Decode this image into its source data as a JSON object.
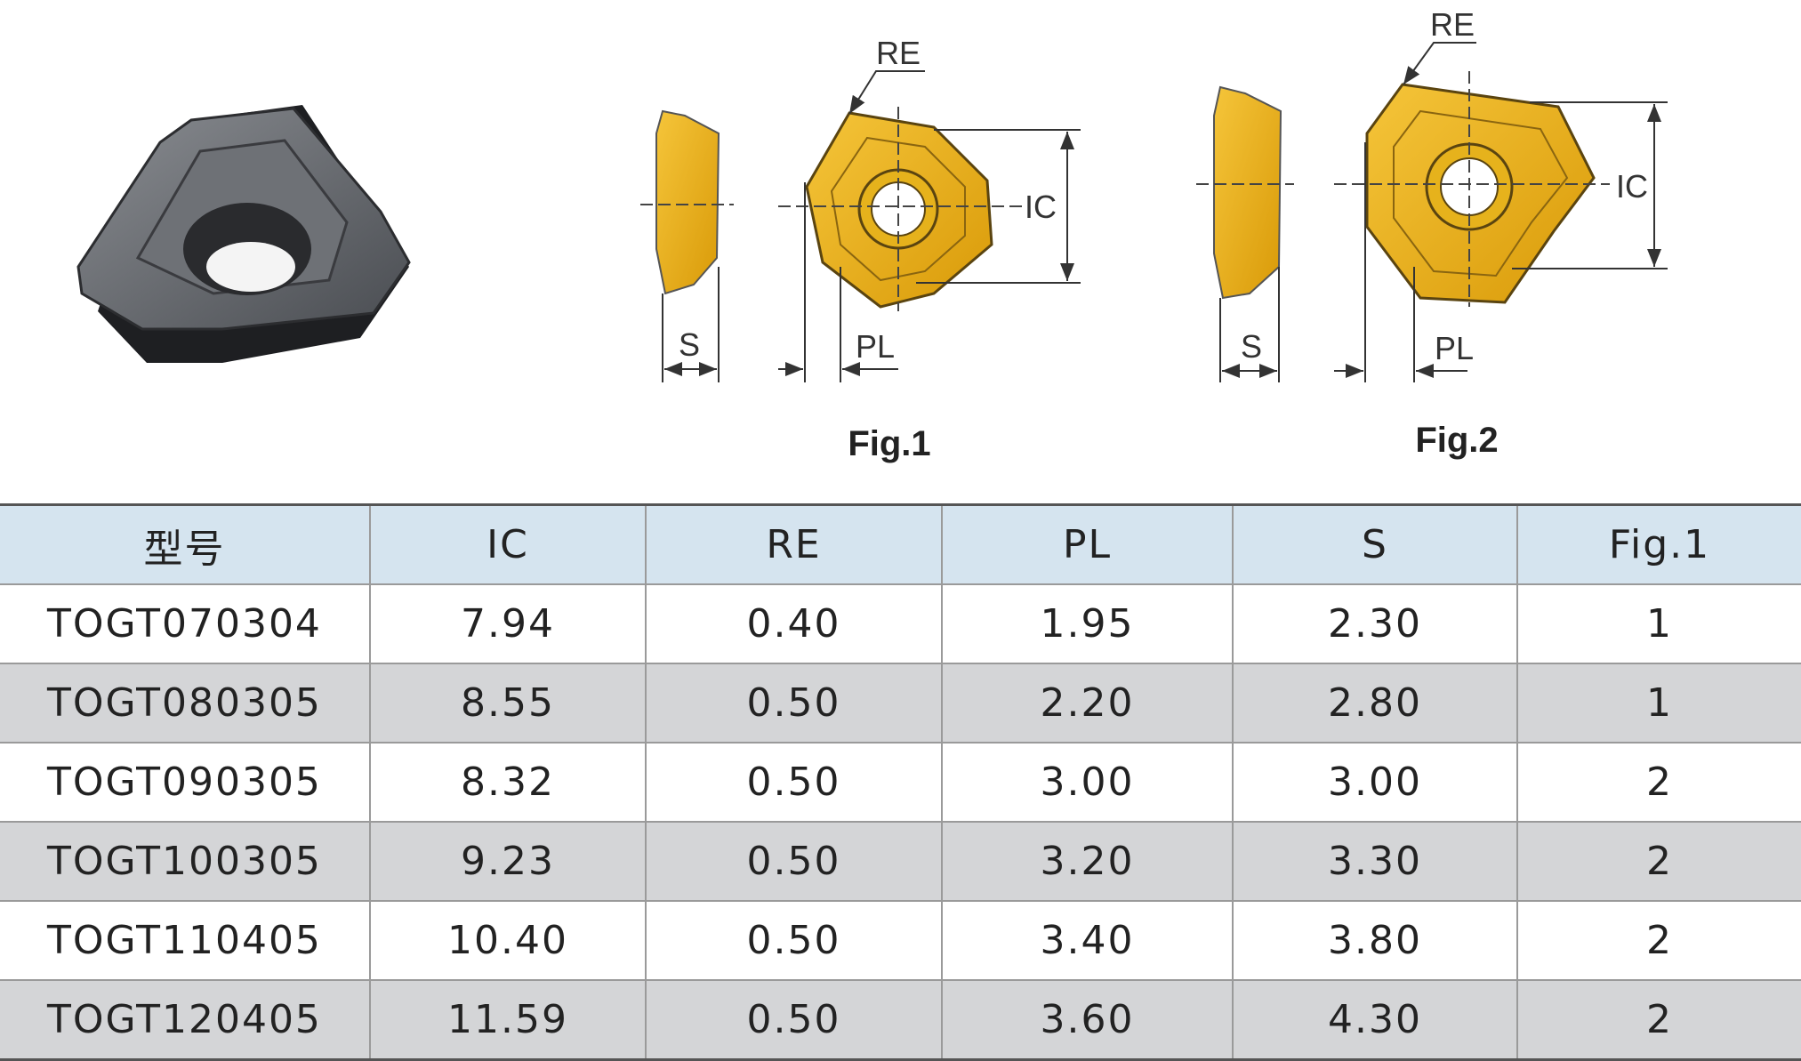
{
  "figures": [
    {
      "caption": "Fig.1",
      "labels": {
        "re": "RE",
        "ic": "IC",
        "pl": "PL",
        "s": "S"
      }
    },
    {
      "caption": "Fig.2",
      "labels": {
        "re": "RE",
        "ic": "IC",
        "pl": "PL",
        "s": "S"
      }
    }
  ],
  "table": {
    "header": [
      "型号",
      "IC",
      "RE",
      "PL",
      "S",
      "Fig.1"
    ],
    "rows": [
      [
        "TOGT070304",
        "7.94",
        "0.40",
        "1.95",
        "2.30",
        "1"
      ],
      [
        "TOGT080305",
        "8.55",
        "0.50",
        "2.20",
        "2.80",
        "1"
      ],
      [
        "TOGT090305",
        "8.32",
        "0.50",
        "3.00",
        "3.00",
        "2"
      ],
      [
        "TOGT100305",
        "9.23",
        "0.50",
        "3.20",
        "3.30",
        "2"
      ],
      [
        "TOGT110405",
        "10.40",
        "0.50",
        "3.40",
        "3.80",
        "2"
      ],
      [
        "TOGT120405",
        "11.59",
        "0.50",
        "3.60",
        "4.30",
        "2"
      ]
    ]
  }
}
